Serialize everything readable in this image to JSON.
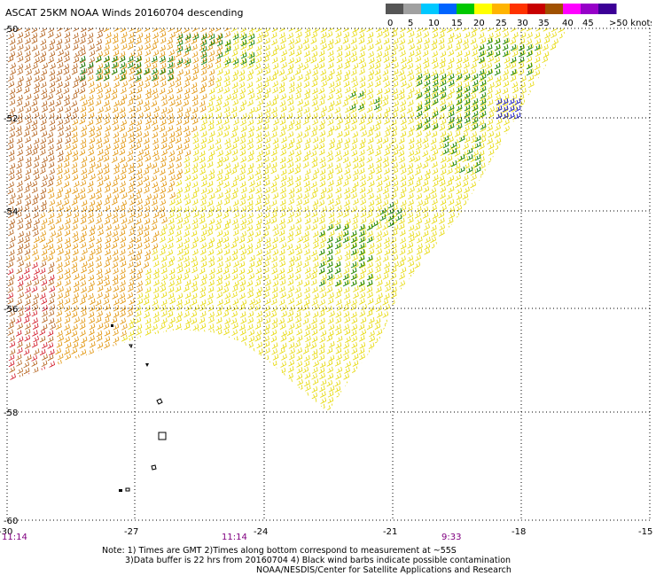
{
  "title": "ASCAT 25KM NOAA Winds 20160704 descending",
  "scale": {
    "labels": [
      "0",
      "5",
      "10",
      "15",
      "20",
      "25",
      "30",
      "35",
      "40",
      "45",
      ">50 knots"
    ],
    "colors": [
      "#555555",
      "#a0a0a0",
      "#00c8ff",
      "#0064ff",
      "#00c800",
      "#ffff00",
      "#ffb400",
      "#ff3200",
      "#c80000",
      "#a05000",
      "#ff00ff",
      "#9600c8",
      "#3c0096"
    ]
  },
  "lat_labels": [
    "-50",
    "-52",
    "-54",
    "-56",
    "-58",
    "-60"
  ],
  "lon_labels": [
    "-30",
    "-27",
    "-24",
    "-21",
    "-18",
    "-15"
  ],
  "time_labels": [
    "11:14",
    "11:14",
    "9:33"
  ],
  "notes": [
    "Note: 1) Times are GMT 2)Times along bottom correspond to measurement at ~55S",
    "3)Data buffer is 22 hrs from 20160704 4) Black wind barbs indicate possible contamination",
    "NOAA/NESDIS/Center for Satellite Applications and Research"
  ],
  "colors": {
    "grid": "#000000",
    "time_label": "#800080",
    "barb_green": "#0a7d0a",
    "barb_yellow": "#e6d800",
    "barb_orange": "#e09000",
    "barb_brown": "#b05a10",
    "barb_red": "#d01020",
    "barb_blue": "#1010c0"
  }
}
